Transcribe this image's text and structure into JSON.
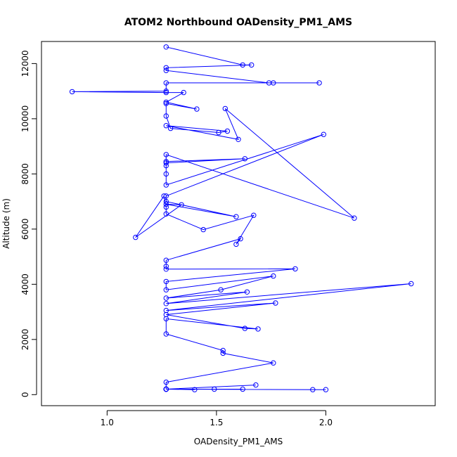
{
  "chart_data": {
    "type": "line",
    "title": "ATOM2 Northbound OADensity_PM1_AMS",
    "xlabel": "OADensity_PM1_AMS",
    "ylabel": "Altitude (m)",
    "xlim": [
      0.7,
      2.5
    ],
    "ylim": [
      -400,
      12800
    ],
    "x_ticks": [
      1.0,
      1.5,
      2.0
    ],
    "x_tick_labels": [
      "1.0",
      "1.5",
      "2.0"
    ],
    "y_ticks": [
      0,
      2000,
      4000,
      6000,
      8000,
      10000,
      12000
    ],
    "y_tick_labels": [
      "0",
      "2000",
      "4000",
      "6000",
      "8000",
      "10000",
      "12000"
    ],
    "grid": false,
    "marker": "open-circle",
    "series_color": "#0000ff",
    "series": [
      {
        "x": [
          1.27,
          1.62,
          1.66,
          1.27,
          1.27,
          1.74,
          1.76,
          1.97,
          1.27,
          1.27,
          0.84,
          1.27,
          1.35,
          1.27,
          1.41,
          1.27,
          1.27,
          1.29,
          1.51,
          1.55,
          1.27,
          1.6,
          1.54,
          2.13,
          1.27,
          1.27,
          1.63,
          1.27,
          1.27,
          1.27,
          1.27,
          1.99,
          1.27,
          1.27,
          1.59,
          1.27,
          1.34,
          1.13,
          1.26,
          1.27,
          1.27,
          1.44,
          1.67,
          1.59,
          1.61,
          1.27,
          1.27,
          1.27,
          1.86,
          1.27,
          1.27,
          1.76,
          1.52,
          1.27,
          1.64,
          1.27,
          2.39,
          1.27,
          1.77,
          1.27,
          1.63,
          1.69,
          1.27,
          1.27,
          1.53,
          1.53,
          1.76,
          1.27,
          1.27,
          1.27,
          1.27,
          1.62,
          1.49,
          1.27,
          2.0,
          1.27,
          1.4,
          1.27,
          1.27,
          1.68,
          1.27,
          1.94
        ],
        "y": [
          12600,
          11950,
          11950,
          11850,
          11750,
          11300,
          11300,
          11300,
          11300,
          11000,
          10980,
          10950,
          10950,
          10600,
          10350,
          10550,
          10100,
          9650,
          9500,
          9550,
          9750,
          9250,
          10370,
          6400,
          8700,
          8400,
          8550,
          8450,
          8300,
          8000,
          7600,
          9430,
          7200,
          7000,
          6450,
          6900,
          6880,
          5700,
          7200,
          6800,
          6550,
          5980,
          6500,
          5450,
          5650,
          4870,
          4650,
          4550,
          4560,
          4100,
          3800,
          4300,
          3800,
          3500,
          3720,
          3300,
          4020,
          3050,
          3320,
          2900,
          2400,
          2380,
          2750,
          2200,
          1600,
          1500,
          1150,
          450,
          200,
          200,
          200,
          200,
          200,
          200,
          180,
          200,
          180,
          200,
          200,
          350,
          200,
          180
        ]
      }
    ]
  }
}
